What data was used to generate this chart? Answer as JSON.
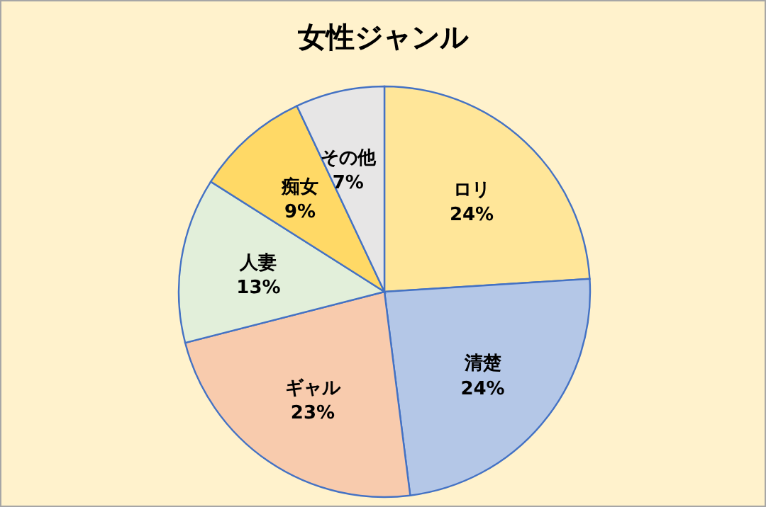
{
  "chart_data": {
    "type": "pie",
    "title": "女性ジャンル",
    "categories": [
      "ロリ",
      "清楚",
      "ギャル",
      "人妻",
      "痴女",
      "その他"
    ],
    "values": [
      24,
      24,
      23,
      13,
      9,
      7
    ],
    "colors": [
      "#ffe699",
      "#b4c7e7",
      "#f8cbad",
      "#e2efda",
      "#ffd966",
      "#e7e6e6"
    ],
    "value_labels": [
      "24%",
      "24%",
      "23%",
      "13%",
      "9%",
      "7%"
    ]
  }
}
